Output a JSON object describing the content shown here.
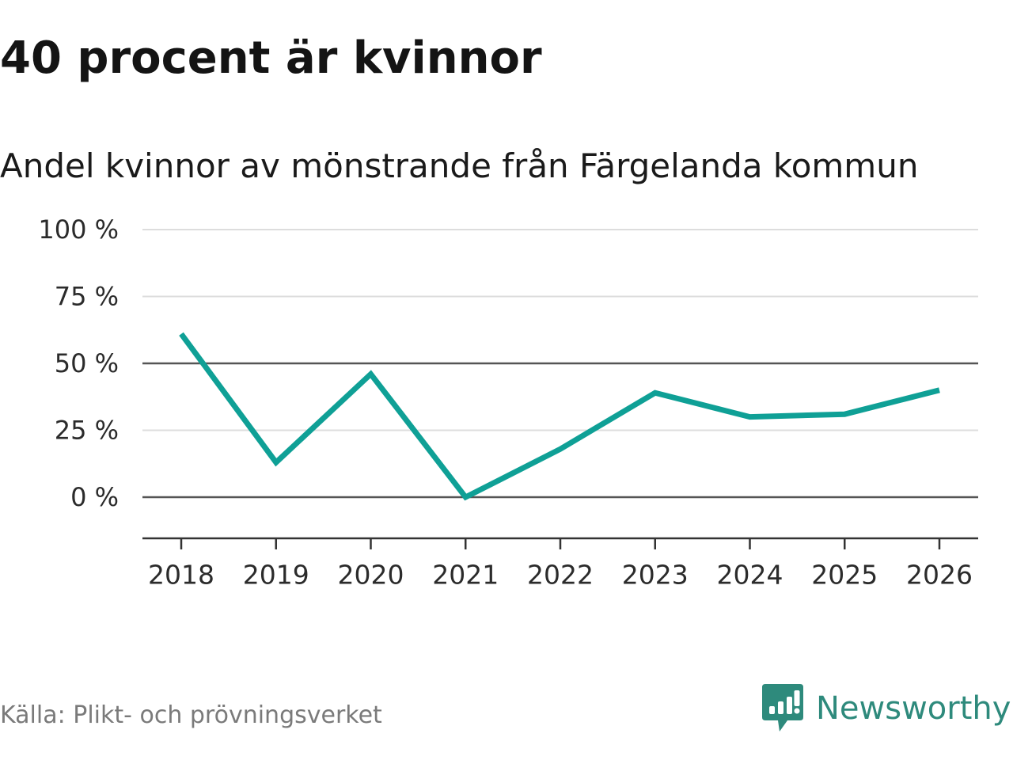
{
  "header": {
    "title": "40 procent är kvinnor",
    "subtitle": "Andel kvinnor av mönstrande från Färgelanda kommun"
  },
  "footer": {
    "source": "Källa: Plikt- och prövningsverket",
    "brand": "Newsworthy"
  },
  "colors": {
    "line": "#0fa096",
    "brand": "#2e8a7c",
    "grid": "#dddddd",
    "reference": "#555555",
    "axis": "#333333"
  },
  "icons": {
    "brand_logo": "newsworthy-logo-icon"
  },
  "chart_data": {
    "type": "line",
    "title": "40 procent är kvinnor",
    "subtitle": "Andel kvinnor av mönstrande från Färgelanda kommun",
    "xlabel": "",
    "ylabel": "",
    "x": [
      "2018",
      "2019",
      "2020",
      "2021",
      "2022",
      "2023",
      "2024",
      "2025",
      "2026"
    ],
    "series": [
      {
        "name": "Andel kvinnor",
        "values": [
          61,
          13,
          46,
          0,
          18,
          39,
          30,
          31,
          40
        ]
      }
    ],
    "ylim": [
      -15,
      100
    ],
    "yticks": [
      0,
      25,
      50,
      75,
      100
    ],
    "ytick_labels": [
      "0 %",
      "25 %",
      "50 %",
      "75 %",
      "100 %"
    ],
    "reference_lines": [
      0,
      50
    ],
    "grid": true,
    "legend": "none"
  }
}
